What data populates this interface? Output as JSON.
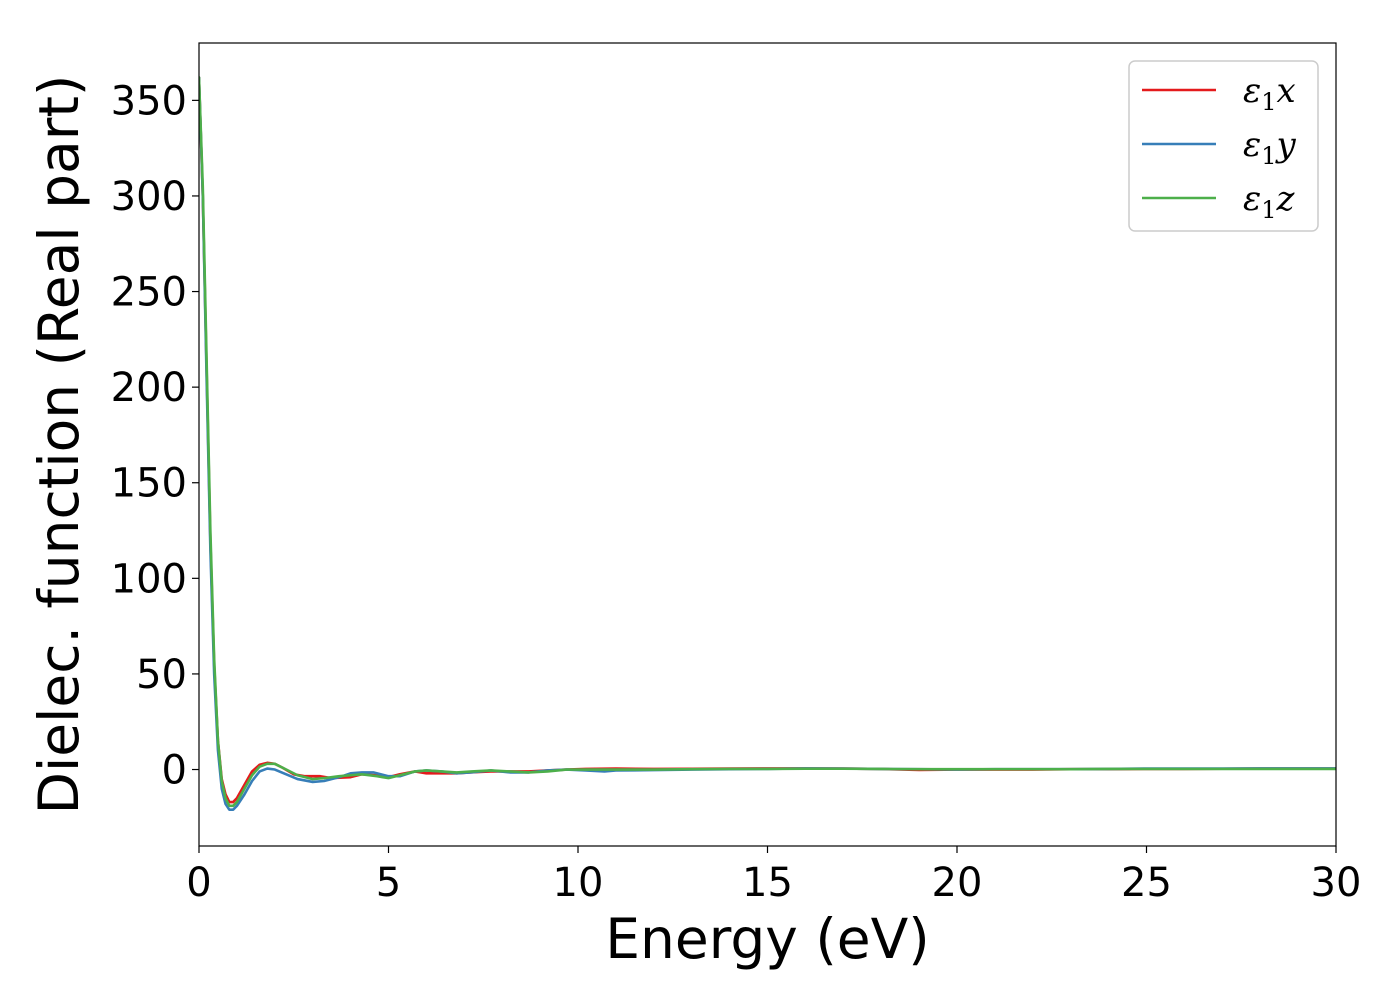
{
  "chart_data": {
    "type": "line",
    "title": "",
    "xlabel": "Energy (eV)",
    "ylabel": "Dielec. function (Real part)",
    "xlim": [
      0,
      30
    ],
    "ylim": [
      -40,
      380
    ],
    "xticks": [
      0,
      5,
      10,
      15,
      20,
      25,
      30
    ],
    "yticks": [
      0,
      50,
      100,
      150,
      200,
      250,
      300,
      350
    ],
    "grid": false,
    "legend_position": "top-right",
    "series": [
      {
        "name": "ε1x",
        "legend_base": "ε",
        "legend_sub": "1",
        "legend_suffix": "x",
        "color": "#e41a1c",
        "x": [
          0,
          0.1,
          0.2,
          0.3,
          0.4,
          0.5,
          0.6,
          0.7,
          0.8,
          0.9,
          1.0,
          1.2,
          1.4,
          1.6,
          1.8,
          2.0,
          2.2,
          2.5,
          2.8,
          3.2,
          3.5,
          4.0,
          4.3,
          4.7,
          5.0,
          5.3,
          5.7,
          6.0,
          6.3,
          6.8,
          7.2,
          7.7,
          8.2,
          8.7,
          9.2,
          9.7,
          10.2,
          11,
          12,
          13,
          14,
          15,
          16,
          17,
          18,
          19,
          20,
          21,
          22,
          23,
          24,
          25,
          26,
          27,
          28,
          29,
          30
        ],
        "y": [
          362,
          300,
          210,
          120,
          55,
          15,
          -5,
          -13,
          -17,
          -17,
          -15,
          -8,
          -1,
          2.5,
          3.5,
          3,
          1,
          -2.5,
          -3.5,
          -3.5,
          -4.5,
          -4,
          -2.5,
          -3,
          -4,
          -2.5,
          -1,
          -2,
          -2,
          -2,
          -1.5,
          -1,
          -1,
          -1,
          -0.5,
          0,
          0.3,
          0.5,
          0.3,
          0.4,
          0.5,
          0.6,
          0.6,
          0.5,
          0.3,
          -0.2,
          0,
          0,
          0,
          0.2,
          0.2,
          0.3,
          0.3,
          0.4,
          0.5,
          0.5,
          0.5
        ]
      },
      {
        "name": "ε1y",
        "legend_base": "ε",
        "legend_sub": "1",
        "legend_suffix": "y",
        "color": "#377eb8",
        "x": [
          0,
          0.1,
          0.2,
          0.3,
          0.4,
          0.5,
          0.6,
          0.7,
          0.8,
          0.9,
          1.0,
          1.2,
          1.4,
          1.6,
          1.8,
          2.0,
          2.3,
          2.6,
          3.0,
          3.3,
          3.7,
          4.0,
          4.3,
          4.6,
          5.0,
          5.3,
          5.7,
          6.0,
          6.4,
          6.8,
          7.2,
          7.7,
          8.2,
          8.7,
          9.2,
          9.7,
          10.2,
          10.7,
          11,
          12,
          13,
          14,
          15,
          16,
          17,
          18,
          19,
          20,
          21,
          22,
          23,
          24,
          25,
          26,
          27,
          28,
          29,
          30
        ],
        "y": [
          362,
          300,
          205,
          115,
          50,
          10,
          -10,
          -18,
          -21,
          -21,
          -19,
          -13,
          -6,
          -1,
          0.5,
          0,
          -2.5,
          -5,
          -6.5,
          -6,
          -4,
          -2,
          -1.5,
          -1.5,
          -3.5,
          -3.5,
          -1,
          -0.5,
          -1,
          -2,
          -1.5,
          -0.5,
          -1.5,
          -1.5,
          -0.5,
          0,
          -0.5,
          -1,
          -0.5,
          -0.3,
          0,
          0.2,
          0.3,
          0.6,
          0.5,
          0.3,
          0.2,
          0,
          0.2,
          0.2,
          0.2,
          0.3,
          0.5,
          0.5,
          0.5,
          0.6,
          0.6,
          0.6
        ]
      },
      {
        "name": "ε1z",
        "legend_base": "ε",
        "legend_sub": "1",
        "legend_suffix": "z",
        "color": "#4daf4a",
        "x": [
          0,
          0.1,
          0.2,
          0.3,
          0.4,
          0.5,
          0.6,
          0.7,
          0.8,
          0.9,
          1.0,
          1.2,
          1.4,
          1.6,
          1.8,
          2.0,
          2.3,
          2.6,
          3.0,
          3.3,
          3.7,
          4.0,
          4.3,
          4.7,
          5.0,
          5.3,
          5.7,
          6.0,
          6.4,
          6.8,
          7.2,
          7.7,
          8.2,
          8.7,
          9.2,
          9.7,
          10.2,
          11,
          12,
          13,
          14,
          15,
          16,
          17,
          18,
          19,
          20,
          21,
          22,
          23,
          24,
          25,
          26,
          27,
          28,
          29,
          30
        ],
        "y": [
          362,
          305,
          215,
          125,
          58,
          15,
          -6,
          -15,
          -19,
          -19,
          -17,
          -10,
          -3,
          1.5,
          3,
          3,
          0,
          -3,
          -5,
          -4.5,
          -3.5,
          -3,
          -2.5,
          -3.5,
          -4.5,
          -3,
          -1,
          -0.5,
          -1,
          -1.5,
          -1,
          -0.5,
          -1,
          -1.5,
          -1,
          0,
          0,
          0,
          0,
          0.2,
          0.3,
          0.3,
          0.4,
          0.4,
          0.3,
          0.2,
          0.2,
          0.2,
          0.2,
          0.2,
          0.3,
          0.3,
          0.3,
          0.3,
          0.3,
          0.3,
          0.3
        ]
      }
    ]
  }
}
